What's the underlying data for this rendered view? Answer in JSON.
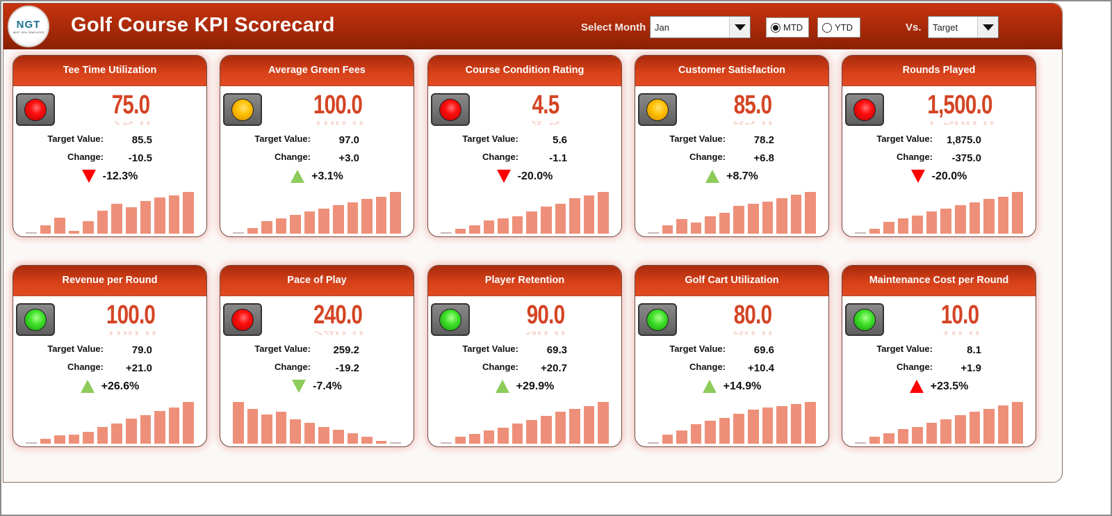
{
  "header": {
    "logo_text": "NGT",
    "logo_subtext": "NEXT GEN TEMPLATES",
    "title": "Golf Course KPI Scorecard",
    "select_month_label": "Select Month",
    "month_value": "Jan",
    "mtd_label": "MTD",
    "ytd_label": "YTD",
    "period_selected": "MTD",
    "vs_label": "Vs.",
    "vs_value": "Target"
  },
  "labels": {
    "target": "Target Value:",
    "change": "Change:"
  },
  "colors": {
    "header_red": "#9e2607",
    "value_red": "#d44424",
    "bar": "#ee9079",
    "tri_red": "#ff0000",
    "tri_green": "#8dcb5a"
  },
  "cards": [
    {
      "title": "Tee Time Utilization",
      "value": "75.0",
      "target": "85.5",
      "change": "-10.5",
      "pct": "-12.3%",
      "light": "red",
      "dir": "down",
      "tri_color": "#ff0000",
      "bars": [
        0,
        14,
        28,
        5,
        22,
        40,
        52,
        46,
        57,
        62,
        66,
        72
      ]
    },
    {
      "title": "Average Green Fees",
      "value": "100.0",
      "target": "97.0",
      "change": "+3.0",
      "pct": "+3.1%",
      "light": "amber",
      "dir": "up",
      "tri_color": "#8dcb5a",
      "bars": [
        0,
        10,
        22,
        27,
        32,
        38,
        43,
        49,
        54,
        60,
        64,
        72
      ]
    },
    {
      "title": "Course Condition Rating",
      "value": "4.5",
      "target": "5.6",
      "change": "-1.1",
      "pct": "-20.0%",
      "light": "red",
      "dir": "down",
      "tri_color": "#ff0000",
      "bars": [
        0,
        8,
        15,
        23,
        26,
        30,
        38,
        47,
        52,
        61,
        66,
        72
      ]
    },
    {
      "title": "Customer Satisfaction",
      "value": "85.0",
      "target": "78.2",
      "change": "+6.8",
      "pct": "+8.7%",
      "light": "amber",
      "dir": "up",
      "tri_color": "#8dcb5a",
      "bars": [
        0,
        14,
        25,
        19,
        30,
        35,
        47,
        51,
        55,
        60,
        66,
        71
      ]
    },
    {
      "title": "Rounds Played",
      "value": "1,500.0",
      "target": "1,875.0",
      "change": "-375.0",
      "pct": "-20.0%",
      "light": "red",
      "dir": "down",
      "tri_color": "#ff0000",
      "bars": [
        0,
        9,
        20,
        26,
        31,
        38,
        43,
        49,
        54,
        60,
        64,
        72
      ]
    },
    {
      "title": "Revenue per Round",
      "value": "100.0",
      "target": "79.0",
      "change": "+21.0",
      "pct": "+26.6%",
      "light": "green",
      "dir": "up",
      "tri_color": "#8dcb5a",
      "bars": [
        0,
        8,
        15,
        16,
        21,
        29,
        35,
        43,
        49,
        57,
        63,
        72
      ]
    },
    {
      "title": "Pace of Play",
      "value": "240.0",
      "target": "259.2",
      "change": "-19.2",
      "pct": "-7.4%",
      "light": "red",
      "dir": "down",
      "tri_color": "#8dcb5a",
      "bars": [
        72,
        60,
        50,
        55,
        42,
        36,
        29,
        24,
        18,
        12,
        5,
        0
      ]
    },
    {
      "title": "Player Retention",
      "value": "90.0",
      "target": "69.3",
      "change": "+20.7",
      "pct": "+29.9%",
      "light": "green",
      "dir": "up",
      "tri_color": "#8dcb5a",
      "bars": [
        0,
        12,
        18,
        24,
        29,
        36,
        42,
        50,
        58,
        63,
        68,
        75
      ]
    },
    {
      "title": "Golf Cart Utilization",
      "value": "80.0",
      "target": "69.6",
      "change": "+10.4",
      "pct": "+14.9%",
      "light": "green",
      "dir": "up",
      "tri_color": "#8dcb5a",
      "bars": [
        0,
        15,
        22,
        32,
        38,
        43,
        50,
        56,
        60,
        62,
        65,
        69
      ]
    },
    {
      "title": "Maintenance Cost per Round",
      "value": "10.0",
      "target": "8.1",
      "change": "+1.9",
      "pct": "+23.5%",
      "light": "green",
      "dir": "up",
      "tri_color": "#ff0000",
      "bars": [
        0,
        12,
        18,
        24,
        28,
        35,
        41,
        48,
        54,
        58,
        64,
        70
      ]
    }
  ]
}
